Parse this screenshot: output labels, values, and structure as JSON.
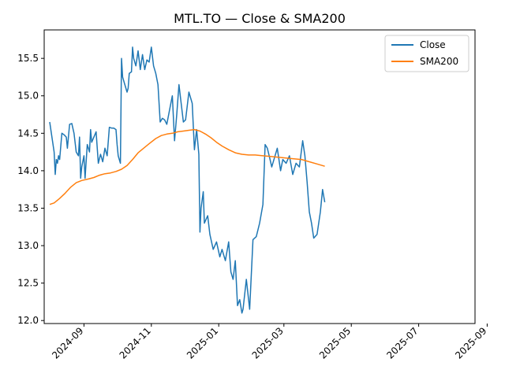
{
  "chart_data": {
    "type": "line",
    "title": "MTL.TO — Close & SMA200",
    "xlabel": "",
    "ylabel": "",
    "xlim": [
      "2024-07-27",
      "2025-08-21"
    ],
    "ylim": [
      11.96,
      15.88
    ],
    "grid": false,
    "legend_position": "top-right",
    "x_ticks": [
      "2024-09",
      "2024-11",
      "2025-01",
      "2025-03",
      "2025-05",
      "2025-07",
      "2025-09"
    ],
    "y_ticks": [
      "12.0",
      "12.5",
      "13.0",
      "13.5",
      "14.0",
      "14.5",
      "15.0",
      "15.5"
    ],
    "series": [
      {
        "name": "Close",
        "color": "#1f77b4",
        "points": [
          [
            "2024-08-01",
            14.65
          ],
          [
            "2024-08-03",
            14.45
          ],
          [
            "2024-08-05",
            14.25
          ],
          [
            "2024-08-06",
            13.95
          ],
          [
            "2024-08-07",
            14.15
          ],
          [
            "2024-08-08",
            14.1
          ],
          [
            "2024-08-09",
            14.2
          ],
          [
            "2024-08-10",
            14.15
          ],
          [
            "2024-08-12",
            14.5
          ],
          [
            "2024-08-14",
            14.48
          ],
          [
            "2024-08-16",
            14.45
          ],
          [
            "2024-08-17",
            14.3
          ],
          [
            "2024-08-19",
            14.62
          ],
          [
            "2024-08-21",
            14.63
          ],
          [
            "2024-08-23",
            14.5
          ],
          [
            "2024-08-25",
            14.25
          ],
          [
            "2024-08-27",
            14.2
          ],
          [
            "2024-08-28",
            14.45
          ],
          [
            "2024-08-29",
            13.9
          ],
          [
            "2024-08-30",
            14.05
          ],
          [
            "2024-09-01",
            14.2
          ],
          [
            "2024-09-02",
            13.9
          ],
          [
            "2024-09-04",
            14.35
          ],
          [
            "2024-09-06",
            14.25
          ],
          [
            "2024-09-07",
            14.55
          ],
          [
            "2024-09-08",
            14.38
          ],
          [
            "2024-09-10",
            14.45
          ],
          [
            "2024-09-12",
            14.52
          ],
          [
            "2024-09-14",
            14.1
          ],
          [
            "2024-09-16",
            14.22
          ],
          [
            "2024-09-18",
            14.12
          ],
          [
            "2024-09-20",
            14.3
          ],
          [
            "2024-09-22",
            14.2
          ],
          [
            "2024-09-24",
            14.58
          ],
          [
            "2024-09-26",
            14.57
          ],
          [
            "2024-09-28",
            14.57
          ],
          [
            "2024-09-30",
            14.55
          ],
          [
            "2024-10-01",
            14.35
          ],
          [
            "2024-10-02",
            14.2
          ],
          [
            "2024-10-04",
            14.1
          ],
          [
            "2024-10-05",
            15.5
          ],
          [
            "2024-10-06",
            15.25
          ],
          [
            "2024-10-08",
            15.15
          ],
          [
            "2024-10-10",
            15.05
          ],
          [
            "2024-10-11",
            15.1
          ],
          [
            "2024-10-12",
            15.3
          ],
          [
            "2024-10-14",
            15.32
          ],
          [
            "2024-10-15",
            15.65
          ],
          [
            "2024-10-16",
            15.5
          ],
          [
            "2024-10-18",
            15.4
          ],
          [
            "2024-10-20",
            15.6
          ],
          [
            "2024-10-22",
            15.35
          ],
          [
            "2024-10-24",
            15.55
          ],
          [
            "2024-10-26",
            15.35
          ],
          [
            "2024-10-28",
            15.48
          ],
          [
            "2024-10-30",
            15.45
          ],
          [
            "2024-11-01",
            15.65
          ],
          [
            "2024-11-03",
            15.4
          ],
          [
            "2024-11-05",
            15.3
          ],
          [
            "2024-11-07",
            15.15
          ],
          [
            "2024-11-09",
            14.65
          ],
          [
            "2024-11-11",
            14.7
          ],
          [
            "2024-11-13",
            14.68
          ],
          [
            "2024-11-15",
            14.62
          ],
          [
            "2024-11-18",
            14.85
          ],
          [
            "2024-11-20",
            15.0
          ],
          [
            "2024-11-22",
            14.4
          ],
          [
            "2024-11-24",
            14.75
          ],
          [
            "2024-11-26",
            15.15
          ],
          [
            "2024-11-28",
            14.9
          ],
          [
            "2024-11-30",
            14.65
          ],
          [
            "2024-12-02",
            14.68
          ],
          [
            "2024-12-05",
            15.05
          ],
          [
            "2024-12-08",
            14.9
          ],
          [
            "2024-12-10",
            14.28
          ],
          [
            "2024-12-12",
            14.55
          ],
          [
            "2024-12-14",
            14.22
          ],
          [
            "2024-12-15",
            13.18
          ],
          [
            "2024-12-16",
            13.5
          ],
          [
            "2024-12-18",
            13.72
          ],
          [
            "2024-12-19",
            13.3
          ],
          [
            "2024-12-22",
            13.4
          ],
          [
            "2024-12-24",
            13.15
          ],
          [
            "2024-12-27",
            12.95
          ],
          [
            "2024-12-30",
            13.05
          ],
          [
            "2025-01-02",
            12.85
          ],
          [
            "2025-01-04",
            12.95
          ],
          [
            "2025-01-07",
            12.8
          ],
          [
            "2025-01-10",
            13.05
          ],
          [
            "2025-01-12",
            12.65
          ],
          [
            "2025-01-14",
            12.55
          ],
          [
            "2025-01-16",
            12.8
          ],
          [
            "2025-01-18",
            12.2
          ],
          [
            "2025-01-20",
            12.28
          ],
          [
            "2025-01-22",
            12.1
          ],
          [
            "2025-01-23",
            12.15
          ],
          [
            "2025-01-26",
            12.55
          ],
          [
            "2025-01-29",
            12.15
          ],
          [
            "2025-02-01",
            13.08
          ],
          [
            "2025-02-04",
            13.12
          ],
          [
            "2025-02-07",
            13.3
          ],
          [
            "2025-02-10",
            13.55
          ],
          [
            "2025-02-12",
            14.35
          ],
          [
            "2025-02-14",
            14.3
          ],
          [
            "2025-02-16",
            14.18
          ],
          [
            "2025-02-18",
            14.05
          ],
          [
            "2025-02-20",
            14.15
          ],
          [
            "2025-02-23",
            14.3
          ],
          [
            "2025-02-26",
            14.0
          ],
          [
            "2025-02-28",
            14.15
          ],
          [
            "2025-03-03",
            14.1
          ],
          [
            "2025-03-06",
            14.2
          ],
          [
            "2025-03-09",
            13.95
          ],
          [
            "2025-03-12",
            14.1
          ],
          [
            "2025-03-15",
            14.05
          ],
          [
            "2025-03-18",
            14.4
          ],
          [
            "2025-03-20",
            14.2
          ],
          [
            "2025-03-22",
            13.85
          ],
          [
            "2025-03-24",
            13.45
          ],
          [
            "2025-03-26",
            13.3
          ],
          [
            "2025-03-28",
            13.1
          ],
          [
            "2025-03-31",
            13.15
          ],
          [
            "2025-04-03",
            13.45
          ],
          [
            "2025-04-05",
            13.75
          ],
          [
            "2025-04-07",
            13.58
          ]
        ]
      },
      {
        "name": "SMA200",
        "color": "#ff7f0e",
        "points": [
          [
            "2024-08-01",
            13.55
          ],
          [
            "2024-08-05",
            13.57
          ],
          [
            "2024-08-10",
            13.63
          ],
          [
            "2024-08-15",
            13.7
          ],
          [
            "2024-08-20",
            13.78
          ],
          [
            "2024-08-25",
            13.84
          ],
          [
            "2024-08-30",
            13.87
          ],
          [
            "2024-09-05",
            13.89
          ],
          [
            "2024-09-10",
            13.91
          ],
          [
            "2024-09-15",
            13.94
          ],
          [
            "2024-09-20",
            13.96
          ],
          [
            "2024-09-25",
            13.97
          ],
          [
            "2024-09-30",
            13.99
          ],
          [
            "2024-10-05",
            14.02
          ],
          [
            "2024-10-10",
            14.07
          ],
          [
            "2024-10-15",
            14.15
          ],
          [
            "2024-10-20",
            14.24
          ],
          [
            "2024-10-25",
            14.3
          ],
          [
            "2024-10-30",
            14.36
          ],
          [
            "2024-11-05",
            14.43
          ],
          [
            "2024-11-10",
            14.47
          ],
          [
            "2024-11-15",
            14.49
          ],
          [
            "2024-11-20",
            14.5
          ],
          [
            "2024-11-25",
            14.52
          ],
          [
            "2024-11-30",
            14.53
          ],
          [
            "2024-12-05",
            14.54
          ],
          [
            "2024-12-10",
            14.55
          ],
          [
            "2024-12-15",
            14.53
          ],
          [
            "2024-12-20",
            14.49
          ],
          [
            "2024-12-25",
            14.44
          ],
          [
            "2024-12-30",
            14.38
          ],
          [
            "2025-01-04",
            14.33
          ],
          [
            "2025-01-10",
            14.28
          ],
          [
            "2025-01-16",
            14.24
          ],
          [
            "2025-01-22",
            14.22
          ],
          [
            "2025-01-28",
            14.21
          ],
          [
            "2025-02-03",
            14.21
          ],
          [
            "2025-02-10",
            14.2
          ],
          [
            "2025-02-17",
            14.19
          ],
          [
            "2025-02-24",
            14.18
          ],
          [
            "2025-03-03",
            14.17
          ],
          [
            "2025-03-10",
            14.16
          ],
          [
            "2025-03-17",
            14.15
          ],
          [
            "2025-03-24",
            14.12
          ],
          [
            "2025-03-31",
            14.09
          ],
          [
            "2025-04-07",
            14.06
          ]
        ]
      }
    ]
  }
}
